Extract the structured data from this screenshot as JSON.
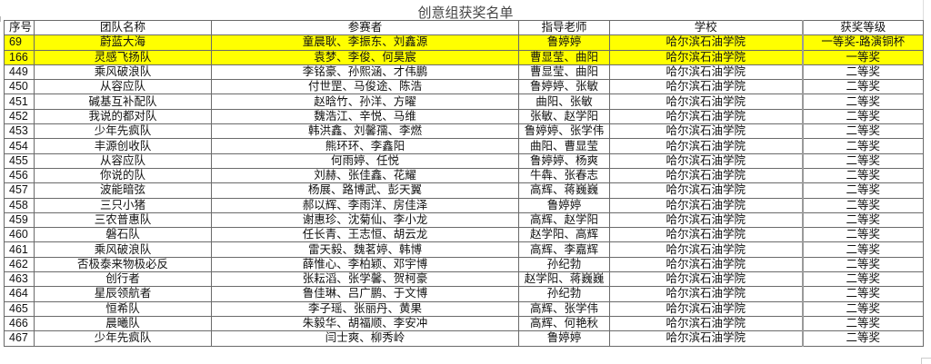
{
  "title": "创意组获奖名单",
  "highlight_color": "#ffff00",
  "columns": [
    "序号",
    "团队名称",
    "参赛者",
    "指导老师",
    "学校",
    "获奖等级"
  ],
  "rows": [
    {
      "id": "69",
      "team": "蔚蓝大海",
      "members": "童晨耿、李振东、刘鑫源",
      "advisor": "鲁婷婷",
      "school": "哈尔滨石油学院",
      "award": "一等奖-路演铜杯",
      "highlight": true
    },
    {
      "id": "166",
      "team": "灵感飞扬队",
      "members": "袁梦、李俊、何昊宸",
      "advisor": "曹显莹、曲阳",
      "school": "哈尔滨石油学院",
      "award": "一等奖",
      "highlight": true
    },
    {
      "id": "449",
      "team": "乘风破浪队",
      "members": "李铭豪、孙熙涵、才伟鹏",
      "advisor": "曹显莹、曲阳",
      "school": "哈尔滨石油学院",
      "award": "二等奖"
    },
    {
      "id": "450",
      "team": "从容应队",
      "members": "付世罡、马俊途、陈浩",
      "advisor": "鲁婷婷、张敏",
      "school": "哈尔滨石油学院",
      "award": "二等奖"
    },
    {
      "id": "451",
      "team": "碱基互补配队",
      "members": "赵晗竹、孙洋、方曜",
      "advisor": "曲阳、张敏",
      "school": "哈尔滨石油学院",
      "award": "二等奖"
    },
    {
      "id": "452",
      "team": "我说的都对队",
      "members": "魏浩江、辛悦、马维",
      "advisor": "张敏、赵学阳",
      "school": "哈尔滨石油学院",
      "award": "二等奖"
    },
    {
      "id": "453",
      "team": "少年先疯队",
      "members": "韩洪鑫、刘馨孺、李燃",
      "advisor": "鲁婷婷、张学伟",
      "school": "哈尔滨石油学院",
      "award": "二等奖"
    },
    {
      "id": "454",
      "team": "丰源创收队",
      "members": "熊环环、李鑫阳",
      "advisor": "曲阳、曹显莹",
      "school": "哈尔滨石油学院",
      "award": "二等奖"
    },
    {
      "id": "455",
      "team": "从容应队",
      "members": "何雨婷、任悦",
      "advisor": "鲁婷婷、杨爽",
      "school": "哈尔滨石油学院",
      "award": "二等奖"
    },
    {
      "id": "456",
      "team": "你说的队",
      "members": "刘赫、张佳鑫、花耀",
      "advisor": "牛犇、张春志",
      "school": "哈尔滨石油学院",
      "award": "二等奖"
    },
    {
      "id": "457",
      "team": "波能暗弦",
      "members": "杨展、路博武、彭天翼",
      "advisor": "高辉、蒋巍巍",
      "school": "哈尔滨石油学院",
      "award": "二等奖"
    },
    {
      "id": "458",
      "team": "三只小猪",
      "members": "郝以辉、李雨洋、房佳泽",
      "advisor": "鲁婷婷",
      "school": "哈尔滨石油学院",
      "award": "二等奖"
    },
    {
      "id": "459",
      "team": "三农普惠队",
      "members": "谢惠珍、沈菊仙、李小龙",
      "advisor": "高辉、赵学阳",
      "school": "哈尔滨石油学院",
      "award": "二等奖"
    },
    {
      "id": "460",
      "team": "磐石队",
      "members": "任长青、王志恒、胡云龙",
      "advisor": "赵学阳、高辉",
      "school": "哈尔滨石油学院",
      "award": "二等奖"
    },
    {
      "id": "461",
      "team": "乘风破浪队",
      "members": "雷天毅、魏茗婷、韩博",
      "advisor": "高辉、李嘉辉",
      "school": "哈尔滨石油学院",
      "award": "二等奖"
    },
    {
      "id": "462",
      "team": "否极泰来物极必反",
      "members": "薛惟心、李柏颖、邓宇博",
      "advisor": "孙纪勃",
      "school": "哈尔滨石油学院",
      "award": "二等奖"
    },
    {
      "id": "463",
      "team": "创行者",
      "members": "张耘滔、张学馨、贺柯豪",
      "advisor": "赵学阳、蒋巍巍",
      "school": "哈尔滨石油学院",
      "award": "二等奖"
    },
    {
      "id": "464",
      "team": "星辰领航者",
      "members": "鲁佳琳、吕广鹏、于文博",
      "advisor": "孙纪勃",
      "school": "哈尔滨石油学院",
      "award": "二等奖"
    },
    {
      "id": "465",
      "team": "恒希队",
      "members": "李子瑶、张丽丹、黄果",
      "advisor": "高辉、张学伟",
      "school": "哈尔滨石油学院",
      "award": "二等奖"
    },
    {
      "id": "466",
      "team": "晨曦队",
      "members": "朱毅华、胡福顺、李安冲",
      "advisor": "高辉、何艳秋",
      "school": "哈尔滨石油学院",
      "award": "二等奖"
    },
    {
      "id": "467",
      "team": "少年先疯队",
      "members": "闫士爽、柳秀岭",
      "advisor": "鲁婷婷",
      "school": "哈尔滨石油学院",
      "award": "二等奖"
    }
  ]
}
